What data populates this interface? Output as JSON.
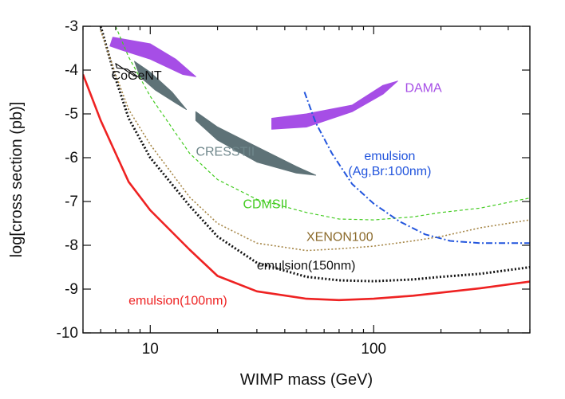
{
  "chart_data": {
    "type": "line",
    "xscale": "log",
    "xlabel": "WIMP mass (GeV)",
    "ylabel": "log[cross section (pb)]",
    "xlim": [
      5,
      500
    ],
    "ylim": [
      -10,
      -3
    ],
    "xticks": [
      {
        "value": 10,
        "label": "10"
      },
      {
        "value": 100,
        "label": "100"
      }
    ],
    "yticks": [
      {
        "value": -3,
        "label": "-3"
      },
      {
        "value": -4,
        "label": "-4"
      },
      {
        "value": -5,
        "label": "-5"
      },
      {
        "value": -6,
        "label": "-6"
      },
      {
        "value": -7,
        "label": "-7"
      },
      {
        "value": -8,
        "label": "-8"
      },
      {
        "value": -9,
        "label": "-9"
      },
      {
        "value": -10,
        "label": "-10"
      }
    ],
    "series": [
      {
        "name": "emulsion(100nm)",
        "label": "emulsion(100nm)",
        "color": "#ee2222",
        "style": "solid",
        "width": 2.6,
        "label_at": [
          8.0,
          -9.35
        ],
        "anchor": "start",
        "points": [
          [
            5,
            -4.1
          ],
          [
            6,
            -5.15
          ],
          [
            7,
            -5.9
          ],
          [
            8,
            -6.55
          ],
          [
            10,
            -7.2
          ],
          [
            15,
            -8.1
          ],
          [
            20,
            -8.7
          ],
          [
            30,
            -9.05
          ],
          [
            50,
            -9.22
          ],
          [
            70,
            -9.25
          ],
          [
            100,
            -9.22
          ],
          [
            150,
            -9.15
          ],
          [
            200,
            -9.08
          ],
          [
            300,
            -8.98
          ],
          [
            500,
            -8.83
          ]
        ]
      },
      {
        "name": "emulsion(150nm)",
        "label": "emulsion(150nm)",
        "color": "#111111",
        "style": "dotted",
        "width": 3,
        "label_at": [
          30,
          -8.55
        ],
        "anchor": "start",
        "points": [
          [
            6,
            -3.0
          ],
          [
            7,
            -4.2
          ],
          [
            8,
            -5.1
          ],
          [
            10,
            -6.0
          ],
          [
            15,
            -7.1
          ],
          [
            20,
            -7.8
          ],
          [
            30,
            -8.4
          ],
          [
            50,
            -8.72
          ],
          [
            70,
            -8.8
          ],
          [
            100,
            -8.82
          ],
          [
            150,
            -8.78
          ],
          [
            200,
            -8.72
          ],
          [
            300,
            -8.65
          ],
          [
            500,
            -8.5
          ]
        ]
      },
      {
        "name": "XENON100",
        "label": "XENON100",
        "color": "#a58545",
        "style": "dotted",
        "width": 1.6,
        "label_at": [
          50,
          -7.9
        ],
        "anchor": "start",
        "points": [
          [
            6,
            -3.1
          ],
          [
            7,
            -4.1
          ],
          [
            8,
            -4.9
          ],
          [
            10,
            -5.7
          ],
          [
            15,
            -6.9
          ],
          [
            20,
            -7.5
          ],
          [
            30,
            -7.95
          ],
          [
            50,
            -8.12
          ],
          [
            70,
            -8.08
          ],
          [
            100,
            -8.02
          ],
          [
            150,
            -7.9
          ],
          [
            200,
            -7.8
          ],
          [
            300,
            -7.6
          ],
          [
            500,
            -7.42
          ]
        ]
      },
      {
        "name": "CDMSII",
        "label": "CDMSII",
        "color": "#44cc22",
        "style": "dashed",
        "width": 1.2,
        "label_at": [
          26,
          -7.15
        ],
        "anchor": "start",
        "points": [
          [
            7,
            -3.0
          ],
          [
            8,
            -3.7
          ],
          [
            10,
            -4.6
          ],
          [
            15,
            -5.9
          ],
          [
            20,
            -6.5
          ],
          [
            30,
            -6.95
          ],
          [
            50,
            -7.25
          ],
          [
            70,
            -7.4
          ],
          [
            100,
            -7.42
          ],
          [
            150,
            -7.35
          ],
          [
            200,
            -7.25
          ],
          [
            300,
            -7.15
          ],
          [
            500,
            -6.92
          ]
        ]
      },
      {
        "name": "emulsion (Ag,Br:100nm)",
        "label": "emulsion",
        "label2": "(Ag,Br:100nm)",
        "color": "#2255dd",
        "style": "dashdot",
        "width": 2,
        "label_at": [
          118,
          -6.05
        ],
        "anchor": "middle",
        "points": [
          [
            49,
            -4.5
          ],
          [
            55,
            -5.2
          ],
          [
            65,
            -5.9
          ],
          [
            80,
            -6.6
          ],
          [
            100,
            -7.05
          ],
          [
            130,
            -7.45
          ],
          [
            170,
            -7.75
          ],
          [
            220,
            -7.9
          ],
          [
            300,
            -7.95
          ],
          [
            500,
            -7.95
          ]
        ]
      }
    ],
    "regions": [
      {
        "name": "DAMA",
        "label": "DAMA",
        "color": "#a64ee6",
        "label_color": "#a64ee6",
        "label_at": [
          138,
          -4.5
        ],
        "anchor": "start",
        "outline": [
          [
            6.8,
            -3.25
          ],
          [
            10,
            -3.4
          ],
          [
            13,
            -3.75
          ],
          [
            16,
            -4.15
          ],
          [
            14,
            -4.1
          ],
          [
            10,
            -3.75
          ],
          [
            7.5,
            -3.55
          ],
          [
            6.6,
            -3.45
          ]
        ],
        "outline2": [
          [
            35,
            -5.1
          ],
          [
            50,
            -5.0
          ],
          [
            80,
            -4.8
          ],
          [
            110,
            -4.35
          ],
          [
            128,
            -4.25
          ],
          [
            110,
            -4.55
          ],
          [
            80,
            -4.95
          ],
          [
            50,
            -5.3
          ],
          [
            35,
            -5.35
          ]
        ]
      },
      {
        "name": "CRESSTII",
        "label": "CRESSTII",
        "color": "#5e7277",
        "label_color": "#6f878b",
        "label_at": [
          16,
          -5.95
        ],
        "anchor": "start",
        "outline": [
          [
            8.5,
            -3.8
          ],
          [
            10,
            -4.05
          ],
          [
            12.5,
            -4.5
          ],
          [
            14.5,
            -4.9
          ],
          [
            13,
            -4.75
          ],
          [
            10.5,
            -4.45
          ],
          [
            9,
            -4.15
          ]
        ],
        "outline2": [
          [
            16,
            -4.95
          ],
          [
            20,
            -5.3
          ],
          [
            30,
            -5.75
          ],
          [
            45,
            -6.2
          ],
          [
            55,
            -6.4
          ],
          [
            45,
            -6.35
          ],
          [
            30,
            -6.1
          ],
          [
            20,
            -5.6
          ],
          [
            16,
            -5.15
          ]
        ]
      },
      {
        "name": "CoGeNT",
        "label": "CoGeNT",
        "color": "#ffffff",
        "stroke": "#111111",
        "label_color": "#111111",
        "label_at": [
          6.7,
          -4.22
        ],
        "anchor": "start",
        "outline": [
          [
            7.0,
            -3.85
          ],
          [
            8.3,
            -4.1
          ],
          [
            8.8,
            -4.15
          ],
          [
            7.9,
            -3.98
          ],
          [
            7.1,
            -3.95
          ]
        ]
      }
    ]
  }
}
